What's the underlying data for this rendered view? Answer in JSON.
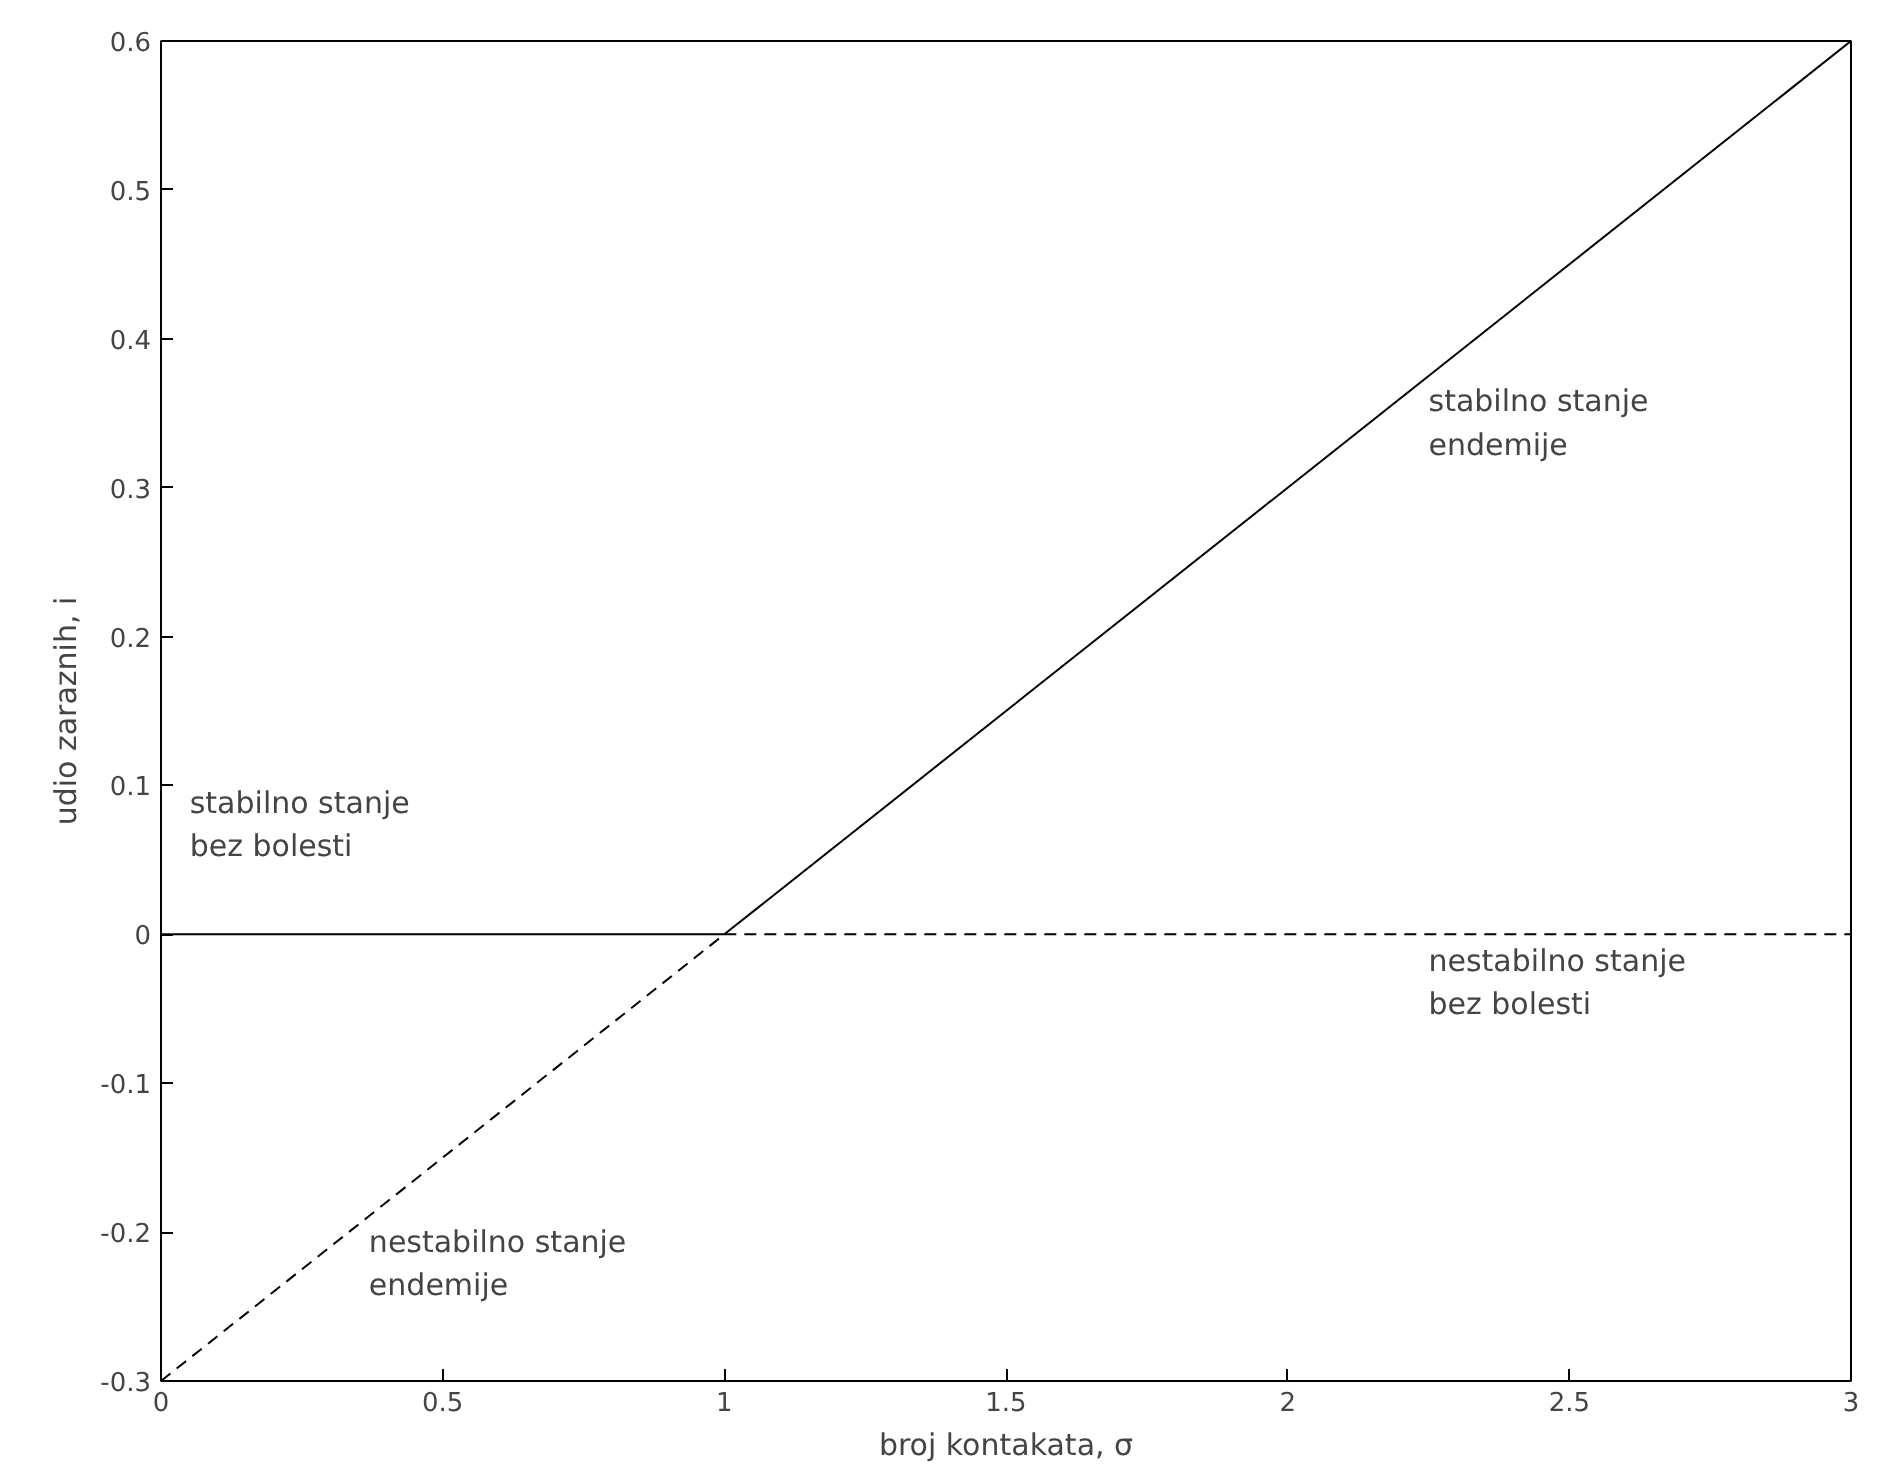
{
  "chart_data": {
    "type": "line",
    "xlabel": "broj kontakata, σ",
    "ylabel": "udio zaraznih, i",
    "series": [
      {
        "color": "#000000",
        "line_style": "solid",
        "x": [
          0,
          1
        ],
        "values": [
          0,
          0
        ]
      },
      {
        "color": "#000000",
        "line_style": "dashed",
        "x": [
          1,
          3
        ],
        "values": [
          0,
          0
        ]
      },
      {
        "color": "#000000",
        "line_style": "solid",
        "x": [
          1,
          3
        ],
        "values": [
          0,
          0.6
        ]
      },
      {
        "color": "#000000",
        "line_style": "dashed",
        "x": [
          0,
          1
        ],
        "values": [
          -0.3,
          0
        ]
      }
    ],
    "annotations": [
      {
        "text": "stabilno stanje\n  endemije",
        "x": 2.25,
        "y": 0.37
      },
      "stabilno stanje\nbez bolesti",
      "nestabilno stanje\nbez bolesti",
      "nestabilno stanje\nendemije"
    ],
    "xlim": [
      0,
      3
    ],
    "ylim": [
      -0.3,
      0.6
    ],
    "xticks": [
      0,
      0.5,
      1,
      1.5,
      2,
      2.5,
      3
    ],
    "yticks": [
      -0.3,
      -0.2,
      -0.1,
      0,
      0.1,
      0.2,
      0.3,
      0.4,
      0.5,
      0.6
    ],
    "grid": false
  }
}
